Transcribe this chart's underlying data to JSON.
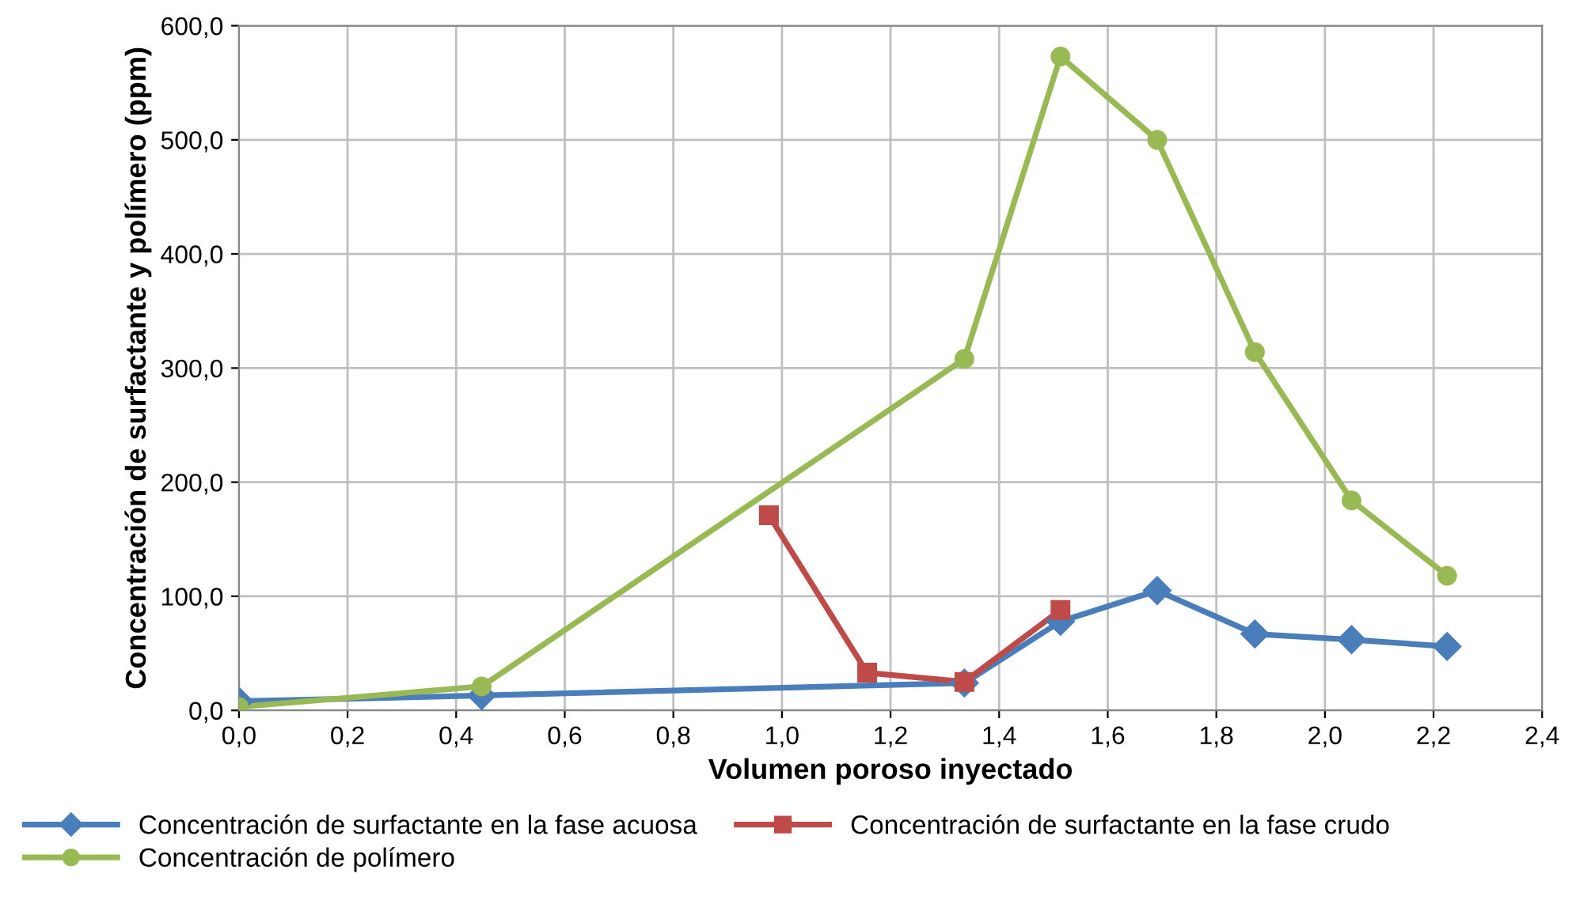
{
  "chart_data": {
    "type": "line",
    "xlabel": "Volumen poroso inyectado",
    "ylabel": "Concentración de surfactante y polímero (ppm)",
    "xlim": [
      0,
      2.4
    ],
    "ylim": [
      0,
      600
    ],
    "xticks": [
      {
        "value": 0,
        "label": "0,0"
      },
      {
        "value": 0.2,
        "label": "0,2"
      },
      {
        "value": 0.4,
        "label": "0,4"
      },
      {
        "value": 0.6,
        "label": "0,6"
      },
      {
        "value": 0.8,
        "label": "0,8"
      },
      {
        "value": 1.0,
        "label": "1,0"
      },
      {
        "value": 1.2,
        "label": "1,2"
      },
      {
        "value": 1.4,
        "label": "1,4"
      },
      {
        "value": 1.6,
        "label": "1,6"
      },
      {
        "value": 1.8,
        "label": "1,8"
      },
      {
        "value": 2.0,
        "label": "2,0"
      },
      {
        "value": 2.2,
        "label": "2,2"
      },
      {
        "value": 2.4,
        "label": "2,4"
      }
    ],
    "yticks": [
      {
        "value": 0,
        "label": "0,0"
      },
      {
        "value": 100,
        "label": "100,0"
      },
      {
        "value": 200,
        "label": "200,0"
      },
      {
        "value": 300,
        "label": "300,0"
      },
      {
        "value": 400,
        "label": "400,0"
      },
      {
        "value": 500,
        "label": "500,0"
      },
      {
        "value": 600,
        "label": "600,0"
      }
    ],
    "grid": true,
    "legend": "bottom",
    "series": [
      {
        "name": "Concentración de surfactante en la fase acuosa",
        "color": "#4a7ebb",
        "marker": "diamond",
        "x": [
          0,
          0.447,
          1.336,
          1.513,
          1.691,
          1.871,
          2.049,
          2.225
        ],
        "values": [
          8,
          13,
          24,
          78,
          105,
          67,
          62,
          56
        ]
      },
      {
        "name": "Concentración de surfactante en la fase crudo",
        "color": "#be4b48",
        "marker": "square",
        "x": [
          0.976,
          1.157,
          1.336,
          1.513
        ],
        "values": [
          171,
          33,
          25,
          88
        ]
      },
      {
        "name": "Concentración de polímero",
        "color": "#98b954",
        "marker": "circle",
        "x": [
          0,
          0.447,
          1.336,
          1.513,
          1.691,
          1.871,
          2.049,
          2.225
        ],
        "values": [
          3,
          21,
          308,
          573,
          500,
          314,
          184,
          118
        ]
      }
    ]
  }
}
